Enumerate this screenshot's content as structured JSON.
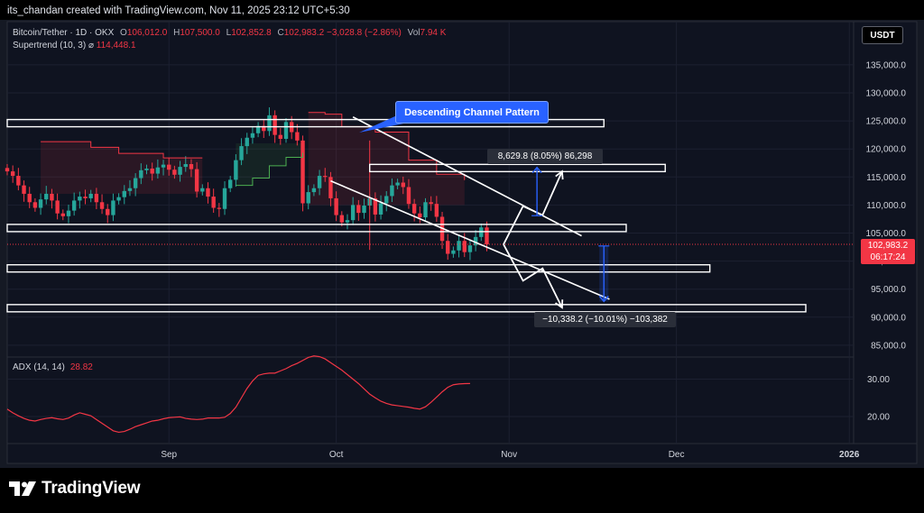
{
  "header": {
    "published": "its_chandan created with TradingView.com, Nov 11, 2025 23:12 UTC+5:30"
  },
  "symbol": {
    "name": "Bitcoin/Tether · 1D · OKX",
    "open_label": "O",
    "open": "106,012.0",
    "high_label": "H",
    "high": "107,500.0",
    "low_label": "L",
    "low": "102,852.8",
    "close_label": "C",
    "close": "102,983.2",
    "change": "−3,028.8 (−2.86%)",
    "vol_label": "Vol",
    "vol": "7.94 K"
  },
  "indicators": {
    "supertrend_label": "Supertrend (10, 3)",
    "supertrend_symbol": "⌀",
    "supertrend_value": "114,448.1",
    "adx_label": "ADX (14, 14)",
    "adx_value": "28.82"
  },
  "currency_button": "USDT",
  "price_tag": {
    "price": "102,983.2",
    "countdown": "06:17:24"
  },
  "annotations": {
    "callout": "Descending Channel Pattern",
    "measure_up": "8,629.8 (8.05%) 86,298",
    "measure_down": "−10,338.2 (−10.01%) −103,382"
  },
  "brand": "TradingView",
  "colors": {
    "up": "#26a69a",
    "down": "#f23645",
    "supertrend_up": "#4caf50",
    "supertrend_down": "#f23645",
    "adx": "#f23645",
    "callout": "#2962ff",
    "measure_arrow": "#2962ff",
    "drawing": "#ffffff"
  },
  "chart_data": [
    {
      "type": "candlestick",
      "title": "Bitcoin/Tether · 1D · OKX",
      "y_axis_ticks": [
        "135,000.0",
        "130,000.0",
        "125,000.0",
        "120,000.0",
        "115,000.0",
        "110,000.0",
        "105,000.0",
        "100,000.0",
        "95,000.0",
        "90,000.0",
        "85,000.0"
      ],
      "ylim": [
        83000,
        139000
      ],
      "x_axis_ticks": [
        "Sep",
        "Oct",
        "Nov",
        "Dec",
        "2026"
      ],
      "grid": true,
      "close_series": [
        116000,
        115200,
        113500,
        112000,
        110500,
        109500,
        111000,
        112000,
        110800,
        108500,
        108000,
        109000,
        110800,
        111500,
        111200,
        112000,
        110500,
        109300,
        108200,
        110800,
        111400,
        112500,
        113000,
        114800,
        116200,
        116500,
        115600,
        116700,
        117200,
        116300,
        115400,
        116800,
        117300,
        116400,
        112400,
        113000,
        111500,
        109500,
        109300,
        113000,
        114500,
        118000,
        120500,
        122000,
        122800,
        124100,
        123200,
        126000,
        122500,
        121800,
        124800,
        123000,
        121500,
        110300,
        112300,
        113000,
        115200,
        115000,
        111200,
        108200,
        106900,
        107300,
        110000,
        108600,
        109900,
        111200,
        108300,
        110300,
        111600,
        113500,
        114000,
        113200,
        110200,
        108500,
        107800,
        110500,
        110200,
        107900,
        103600,
        101300,
        101900,
        103600,
        101600,
        102800,
        104300,
        106000,
        102983
      ],
      "supertrend_up": [
        [
          41,
          113500
        ],
        [
          44,
          114800
        ],
        [
          47,
          117000
        ],
        [
          50,
          118500
        ],
        [
          53,
          119300
        ]
      ],
      "supertrend_down": [
        [
          54,
          126500
        ],
        [
          57,
          126200
        ],
        [
          60,
          124000
        ],
        [
          66,
          123000
        ],
        [
          72,
          118000
        ],
        [
          77,
          115500
        ],
        [
          82,
          114448
        ]
      ],
      "events": [
        {
          "date": "Oct 10",
          "low": 102000,
          "high": 121500
        }
      ],
      "drawings": {
        "channel_upper": [
          [
            125700,
            "Oct 4"
          ],
          [
            104500,
            "Nov 14"
          ]
        ],
        "channel_lower": [
          [
            114300,
            "Sep 30"
          ],
          [
            93200,
            "Nov 19"
          ]
        ],
        "horizontal_zones": [
          {
            "level": 124600,
            "from": "Jul 28",
            "to": "Nov 18"
          },
          {
            "level": 116600,
            "from": "Oct 7",
            "to": "Nov 29"
          },
          {
            "level": 105900,
            "from": "Jul 28",
            "to": "Nov 22"
          },
          {
            "level": 98700,
            "from": "Jul 28",
            "to": "Dec 7"
          },
          {
            "level": 91600,
            "from": "Jul 28",
            "to": "Dec 31"
          }
        ],
        "bullish_path": [
          102983,
          109800,
          108200,
          116000
        ],
        "bearish_path": [
          102983,
          96500,
          98700,
          91700
        ],
        "measure_up": {
          "from": 108100,
          "to": 116700,
          "change": "8,629.8 (8.05%) 86,298"
        },
        "measure_down": {
          "from": 102700,
          "to": 92800,
          "change": "−10,338.2 (−10.01%) −103,382"
        }
      }
    },
    {
      "type": "line",
      "title": "ADX (14, 14)",
      "y_axis_ticks": [
        "30.00",
        "20.00"
      ],
      "ylim": [
        14,
        38
      ],
      "series": [
        {
          "name": "ADX (14, 14)",
          "values": [
            22.0,
            21.0,
            20.2,
            19.5,
            19.0,
            18.8,
            19.2,
            19.5,
            19.7,
            19.4,
            19.2,
            19.6,
            20.4,
            21.0,
            20.6,
            20.2,
            19.2,
            18.2,
            17.2,
            16.2,
            15.8,
            16.0,
            16.6,
            17.3,
            17.8,
            18.3,
            18.8,
            19.0,
            19.4,
            19.7,
            19.8,
            19.9,
            19.5,
            19.3,
            19.2,
            19.3,
            19.6,
            19.6,
            19.6,
            19.8,
            20.8,
            22.5,
            25.0,
            27.5,
            29.5,
            31.0,
            31.4,
            31.6,
            31.6,
            32.2,
            32.8,
            33.6,
            34.2,
            35.0,
            35.8,
            36.2,
            36.0,
            35.4,
            34.4,
            33.4,
            32.4,
            31.2,
            30.0,
            28.8,
            27.4,
            26.0,
            25.0,
            24.1,
            23.5,
            23.1,
            22.9,
            22.7,
            22.5,
            22.2,
            22.0,
            22.6,
            23.8,
            25.2,
            26.6,
            27.8,
            28.5,
            28.7,
            28.8,
            28.82
          ]
        }
      ]
    }
  ]
}
